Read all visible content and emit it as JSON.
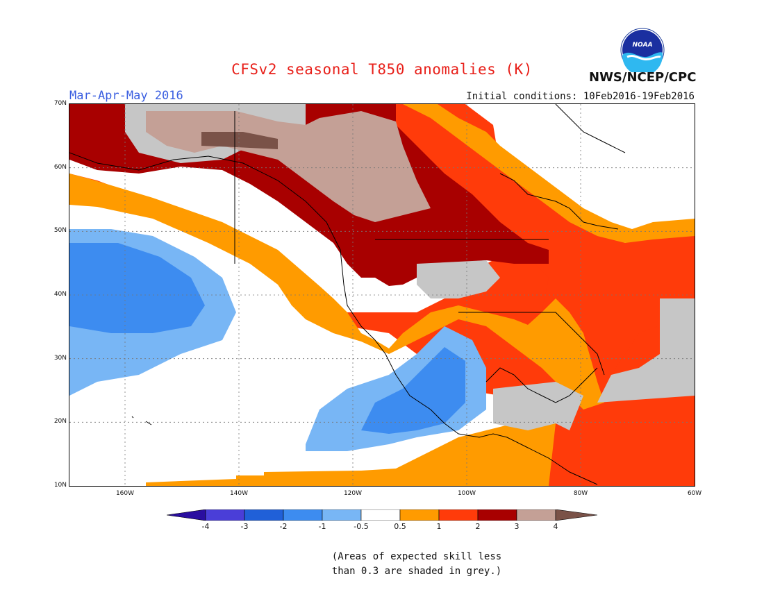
{
  "header": {
    "title": "CFSv2 seasonal T850 anomalies (K)",
    "season": "Mar-Apr-May 2016",
    "initial_conditions": "Initial conditions: 10Feb2016-19Feb2016",
    "org": "NWS/NCEP/CPC",
    "logo_text": "NOAA"
  },
  "axes": {
    "lat_labels": [
      "70N",
      "60N",
      "50N",
      "40N",
      "30N",
      "20N",
      "10N"
    ],
    "lon_labels": [
      "160W",
      "140W",
      "120W",
      "100W",
      "80W",
      "60W"
    ],
    "lat_range": [
      10,
      70
    ],
    "lon_range": [
      -172,
      -60
    ]
  },
  "colorbar": {
    "labels": [
      "-4",
      "-3",
      "-2",
      "-1",
      "-0.5",
      "0.5",
      "1",
      "2",
      "3",
      "4"
    ],
    "colors": [
      "#2a0ea0",
      "#4a3ed8",
      "#2060d8",
      "#3d8cf0",
      "#78b6f5",
      "#ffffff",
      "#ff9b00",
      "#ff3b0a",
      "#a80000",
      "#c4a096",
      "#7a5248"
    ]
  },
  "note": {
    "line1": "(Areas of expected skill less",
    "line2": "than 0.3 are shaded in grey.)"
  },
  "colors": {
    "grey_low_skill": "#c6c6c6"
  }
}
